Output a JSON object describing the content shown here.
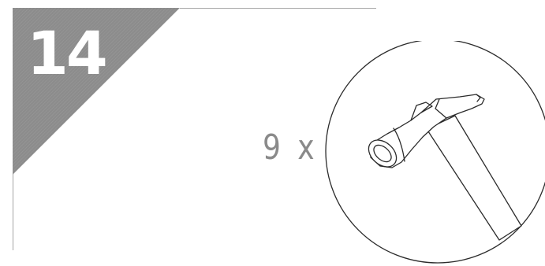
{
  "step": {
    "number": "14"
  },
  "part": {
    "quantity_label": "9 x",
    "icon": "hammer-icon"
  },
  "colors": {
    "corner_fill": "#8c8c8c",
    "frame_line": "#a6a6a6",
    "quantity_text": "#8a8a8a",
    "drawing_stroke": "#2b2b2b"
  }
}
